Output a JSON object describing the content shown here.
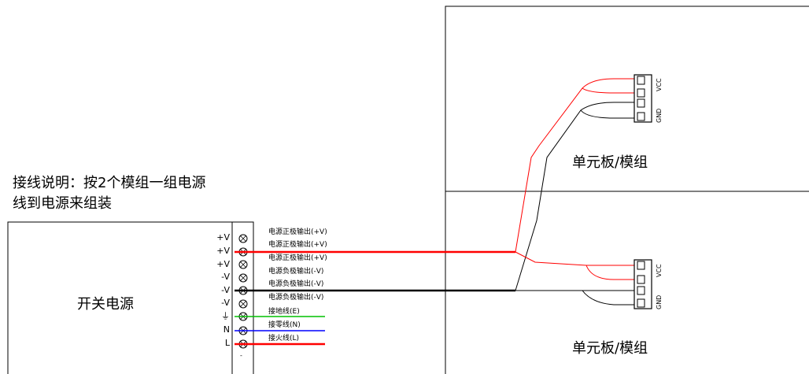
{
  "note": {
    "line1": "接线说明：按2个模组一组电源",
    "line2": "线到电源来组装"
  },
  "power_supply": {
    "label": "开关电源",
    "terminals": [
      "+V",
      "+V",
      "+V",
      "-V",
      "-V",
      "-V",
      "⏚",
      "N",
      "L"
    ],
    "terminal_labels": [
      "电源正极输出(+V)",
      "电源正极输出(+V)",
      "电源正极输出(+V)",
      "电源负极输出(-V)",
      "电源负极输出(-V)",
      "电源负极输出(-V)",
      "接地线(E)",
      "接零线(N)",
      "接火线(L)"
    ]
  },
  "modules": [
    {
      "label": "单元板/模组",
      "pins": [
        "VCC",
        "GND"
      ]
    },
    {
      "label": "单元板/模组",
      "pins": [
        "VCC",
        "GND"
      ]
    }
  ],
  "colors": {
    "positive": "#ff0000",
    "negative": "#000000",
    "earth": "#00c000",
    "neutral": "#0000ff",
    "live": "#ff0000"
  }
}
